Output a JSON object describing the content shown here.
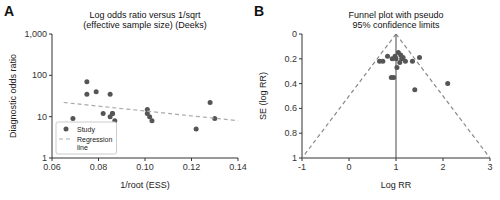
{
  "chart_data": [
    {
      "type": "scatter",
      "title": "Log odds ratio versus 1/sqrt\n(effective sample size) (Deeks)",
      "xlabel": "1/root (ESS)",
      "ylabel": "Diagnostic odds ratio",
      "log": "y",
      "xlim": [
        0.06,
        0.14
      ],
      "ylim": [
        1,
        1000
      ],
      "xticks": [
        0.06,
        0.08,
        {
          "value": 0.1,
          "label": "0.10"
        },
        0.12,
        0.14
      ],
      "yticks": [
        1,
        10,
        100,
        {
          "value": 1000,
          "label": "1,000"
        }
      ],
      "grid": false,
      "legend": "lower left",
      "annotations": [
        "A"
      ],
      "series": [
        {
          "name": "Study",
          "type": "scatter",
          "marker": "circle",
          "color": "#555555",
          "x": [
            0.069,
            0.075,
            0.075,
            0.079,
            0.082,
            0.085,
            0.085,
            0.086,
            0.086,
            0.087,
            0.101,
            0.101,
            0.102,
            0.103,
            0.122,
            0.128,
            0.13
          ],
          "values": [
            9,
            35,
            70,
            40,
            12,
            35,
            10,
            12,
            12,
            8,
            15,
            12,
            10,
            8,
            5,
            22,
            9
          ]
        },
        {
          "name": "Regression\nline",
          "type": "line",
          "line_style": "dashed",
          "color": "#aaaaaa",
          "x": [
            0.065,
            0.14
          ],
          "values": [
            22,
            8
          ]
        }
      ]
    },
    {
      "type": "scatter",
      "title": "Funnel plot with pseudo\n95% confidence limits",
      "xlabel": "Log RR",
      "ylabel": "SE (log RR)",
      "xlim": [
        -1,
        3
      ],
      "ylim": [
        1,
        0
      ],
      "xticks": [
        -1,
        0,
        1,
        2,
        3
      ],
      "yticks": [
        0,
        0.2,
        0.4,
        0.6,
        0.8,
        1
      ],
      "grid": false,
      "annotations": [
        "B"
      ],
      "series": [
        {
          "type": "line",
          "line_style": "dashed",
          "color": "#888888",
          "x": [
            1.0,
            -1.0
          ],
          "values": [
            0.0,
            1.0
          ]
        },
        {
          "type": "line",
          "line_style": "dashed",
          "color": "#888888",
          "x": [
            1.0,
            3.0
          ],
          "values": [
            0.0,
            1.0
          ]
        },
        {
          "type": "line",
          "line_style": "solid",
          "color": "#666666",
          "x": [
            1.0,
            1.0
          ],
          "values": [
            0.0,
            1.0
          ]
        },
        {
          "type": "scatter",
          "marker": "circle",
          "color": "#555555",
          "x": [
            0.72,
            0.82,
            0.92,
            0.98,
            1.0,
            1.02,
            1.05,
            1.08,
            1.1,
            1.12,
            1.15,
            1.2,
            0.95,
            1.35,
            1.5,
            0.9,
            1.4,
            2.1,
            0.65
          ],
          "values": [
            0.22,
            0.18,
            0.2,
            0.18,
            0.2,
            0.27,
            0.15,
            0.23,
            0.17,
            0.2,
            0.19,
            0.22,
            0.35,
            0.22,
            0.19,
            0.35,
            0.45,
            0.4,
            0.22
          ]
        }
      ]
    }
  ]
}
